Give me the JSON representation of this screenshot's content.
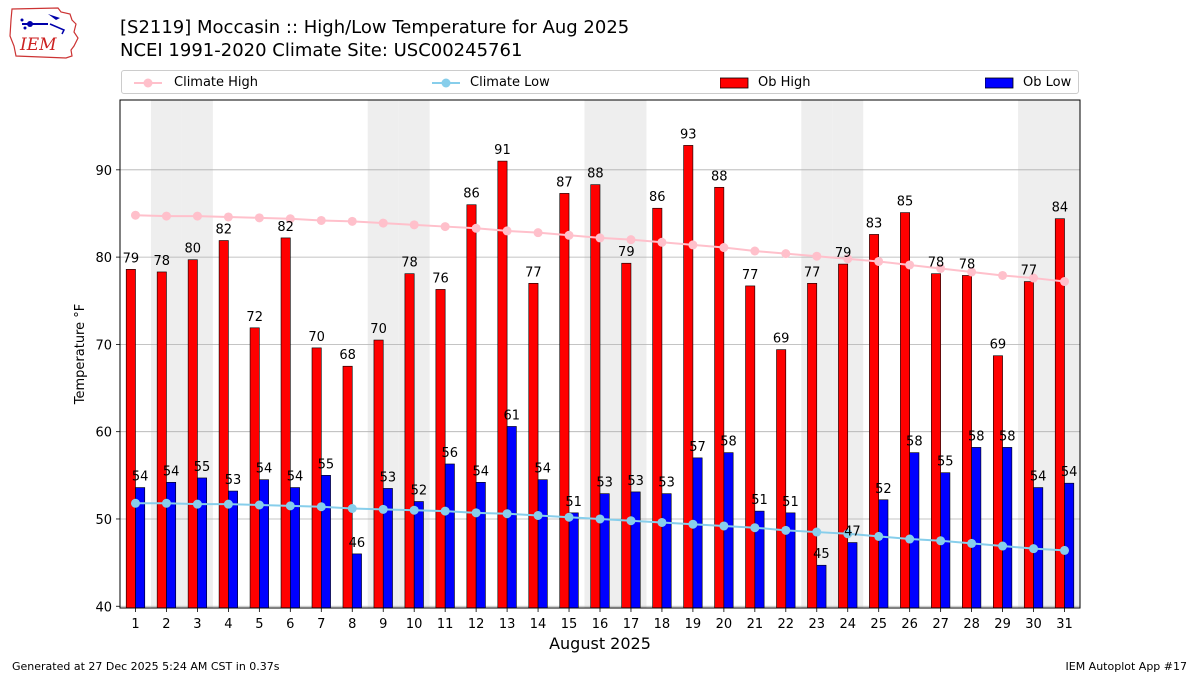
{
  "header": {
    "title_line1": "[S2119] Moccasin :: High/Low Temperature for Aug 2025",
    "title_line2": "NCEI 1991-2020 Climate Site: USC00245761",
    "logo_text": "IEM"
  },
  "legend": {
    "items": [
      {
        "label": "Climate High",
        "color": "#ffc0cb",
        "kind": "line-marker"
      },
      {
        "label": "Climate Low",
        "color": "#87ceeb",
        "kind": "line-marker"
      },
      {
        "label": "Ob High",
        "color": "#ff0000",
        "kind": "bar"
      },
      {
        "label": "Ob Low",
        "color": "#0000ff",
        "kind": "bar"
      }
    ]
  },
  "footer": {
    "left": "Generated at 27 Dec 2025 5:24 AM CST in 0.37s",
    "right": "IEM Autoplot App #17"
  },
  "chart_data": {
    "type": "bar",
    "title": "[S2119] Moccasin :: High/Low Temperature for Aug 2025",
    "xlabel": "August 2025",
    "ylabel": "Temperature °F",
    "ylim": [
      39.8,
      98
    ],
    "yticks": [
      40,
      50,
      60,
      70,
      80,
      90
    ],
    "grid": "horizontal",
    "legend_position": "top",
    "categories": [
      "1",
      "2",
      "3",
      "4",
      "5",
      "6",
      "7",
      "8",
      "9",
      "10",
      "11",
      "12",
      "13",
      "14",
      "15",
      "16",
      "17",
      "18",
      "19",
      "20",
      "21",
      "22",
      "23",
      "24",
      "25",
      "26",
      "27",
      "28",
      "29",
      "30",
      "31"
    ],
    "weekend_shading_days": [
      2,
      3,
      9,
      10,
      16,
      17,
      23,
      24,
      30,
      31
    ],
    "series": [
      {
        "name": "Ob High",
        "color": "#ff0000",
        "values": [
          78.6,
          78.3,
          79.7,
          81.9,
          71.9,
          82.2,
          69.6,
          67.5,
          70.5,
          78.1,
          76.3,
          86.0,
          91.0,
          77.0,
          87.3,
          88.3,
          79.3,
          85.6,
          92.8,
          88.0,
          76.7,
          69.4,
          77.0,
          79.2,
          82.6,
          85.1,
          78.1,
          77.9,
          68.7,
          77.2,
          84.4
        ],
        "labels": [
          "79",
          "78",
          "80",
          "82",
          "72",
          "82",
          "70",
          "68",
          "70",
          "78",
          "76",
          "86",
          "91",
          "77",
          "87",
          "88",
          "79",
          "86",
          "93",
          "88",
          "77",
          "69",
          "77",
          "79",
          "83",
          "85",
          "78",
          "78",
          "69",
          "77",
          "84"
        ]
      },
      {
        "name": "Ob Low",
        "color": "#0000ff",
        "values": [
          53.6,
          54.2,
          54.7,
          53.2,
          54.5,
          53.6,
          55.0,
          46.0,
          53.5,
          52.0,
          56.3,
          54.2,
          60.6,
          54.5,
          50.7,
          52.9,
          53.1,
          52.9,
          57.0,
          57.6,
          50.9,
          50.7,
          44.7,
          47.3,
          52.2,
          57.6,
          55.3,
          58.2,
          58.2,
          53.6,
          54.1
        ],
        "labels": [
          "54",
          "54",
          "55",
          "53",
          "54",
          "54",
          "55",
          "46",
          "53",
          "52",
          "56",
          "54",
          "61",
          "54",
          "51",
          "53",
          "53",
          "53",
          "57",
          "58",
          "51",
          "51",
          "45",
          "47",
          "52",
          "58",
          "55",
          "58",
          "58",
          "54",
          "54"
        ]
      },
      {
        "name": "Climate High",
        "color": "#ffc0cb",
        "values": [
          84.8,
          84.7,
          84.7,
          84.6,
          84.5,
          84.4,
          84.2,
          84.1,
          83.9,
          83.7,
          83.5,
          83.3,
          83.0,
          82.8,
          82.5,
          82.2,
          82.0,
          81.7,
          81.4,
          81.1,
          80.7,
          80.4,
          80.1,
          79.8,
          79.5,
          79.1,
          78.7,
          78.3,
          77.9,
          77.6,
          77.2
        ]
      },
      {
        "name": "Climate Low",
        "color": "#87ceeb",
        "values": [
          51.8,
          51.8,
          51.7,
          51.7,
          51.6,
          51.5,
          51.4,
          51.2,
          51.1,
          51.0,
          50.9,
          50.7,
          50.6,
          50.4,
          50.2,
          50.0,
          49.8,
          49.6,
          49.4,
          49.2,
          49.0,
          48.7,
          48.5,
          48.3,
          48.0,
          47.7,
          47.5,
          47.2,
          46.9,
          46.6,
          46.4
        ]
      }
    ]
  }
}
